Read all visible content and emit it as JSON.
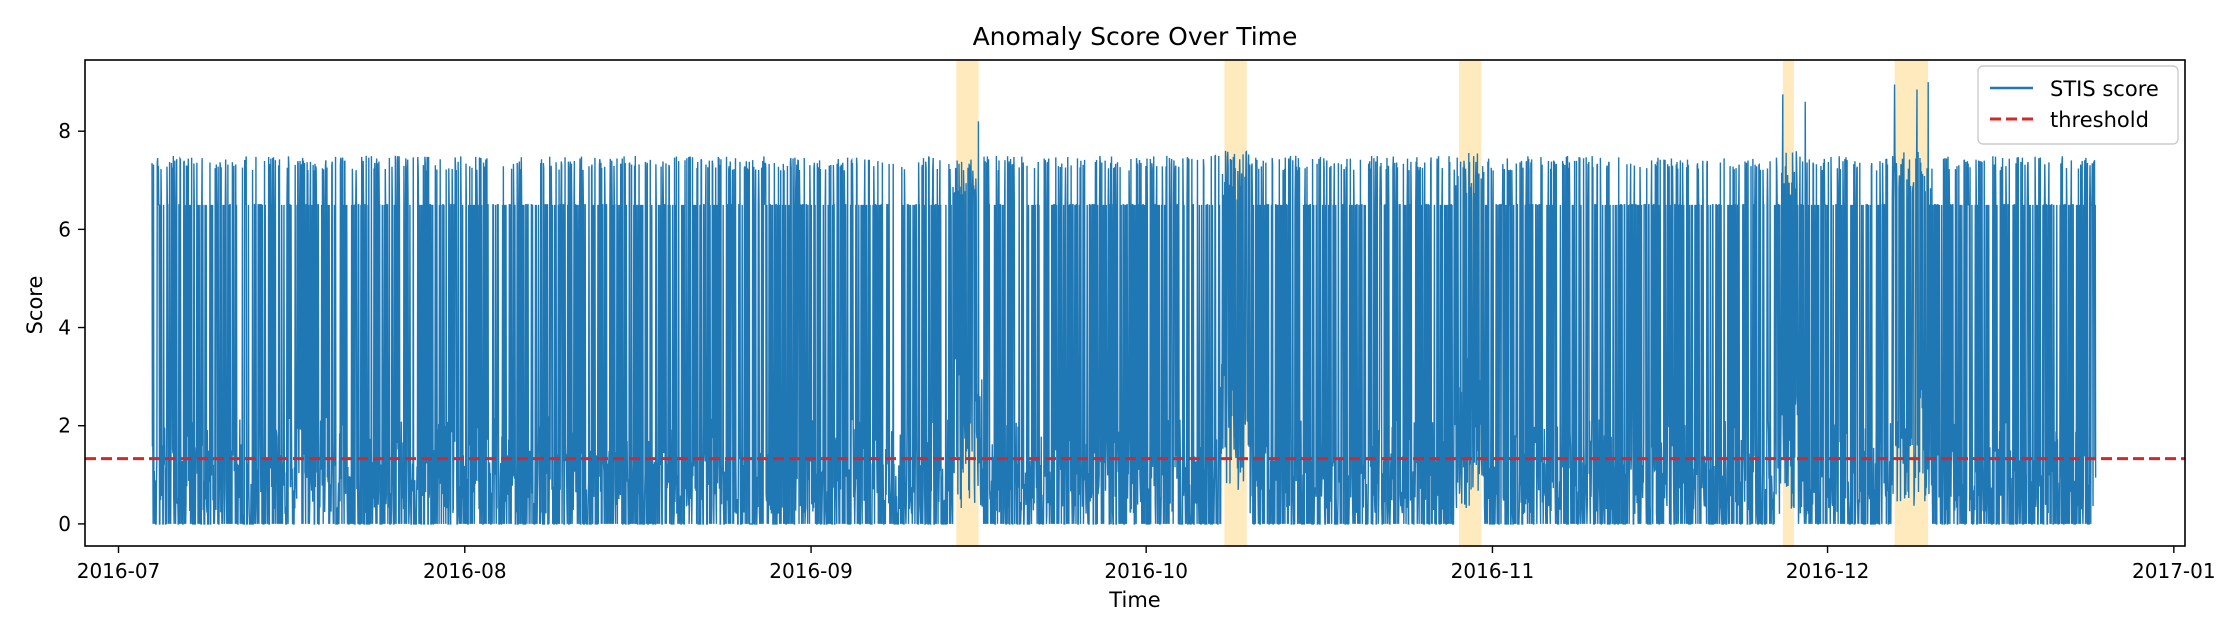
{
  "chart_data": {
    "type": "line",
    "title": "Anomaly Score Over Time",
    "xlabel": "Time",
    "ylabel": "Score",
    "x_axis_type": "date",
    "xlim": [
      "2016-06-28",
      "2017-01-02"
    ],
    "ylim": [
      -0.45,
      9.45
    ],
    "x_ticks": [
      "2016-07",
      "2016-08",
      "2016-09",
      "2016-10",
      "2016-11",
      "2016-12",
      "2017-01"
    ],
    "x_tick_dates": [
      "2016-07-01",
      "2016-08-01",
      "2016-09-01",
      "2016-10-01",
      "2016-11-01",
      "2016-12-01",
      "2017-01-01"
    ],
    "y_ticks": [
      0,
      2,
      4,
      6,
      8
    ],
    "grid": false,
    "legend_position": "top-right",
    "colors": {
      "series": "#1f77b4",
      "threshold": "#d62728",
      "anomaly_region": "#ffe3a8"
    },
    "series": [
      {
        "name": "STIS score",
        "style": "solid",
        "start": "2016-07-04",
        "end": "2016-12-25",
        "typical_levels": [
          0,
          0.5,
          1.0,
          1.8,
          6.5,
          7.45
        ],
        "range": [
          0,
          9.0
        ],
        "peaks": [
          {
            "x": "2016-09-16",
            "y": 8.2
          },
          {
            "x": "2016-11-27",
            "y": 8.75
          },
          {
            "x": "2016-11-29",
            "y": 8.6
          },
          {
            "x": "2016-12-07",
            "y": 8.95
          },
          {
            "x": "2016-12-09",
            "y": 8.85
          },
          {
            "x": "2016-12-10",
            "y": 9.0
          }
        ]
      },
      {
        "name": "threshold",
        "style": "dashed",
        "value": 1.33
      }
    ],
    "anomaly_regions": [
      {
        "start": "2016-09-14",
        "end": "2016-09-16"
      },
      {
        "start": "2016-10-08",
        "end": "2016-10-10"
      },
      {
        "start": "2016-10-29",
        "end": "2016-10-31"
      },
      {
        "start": "2016-11-27",
        "end": "2016-11-28"
      },
      {
        "start": "2016-12-07",
        "end": "2016-12-10"
      }
    ]
  }
}
